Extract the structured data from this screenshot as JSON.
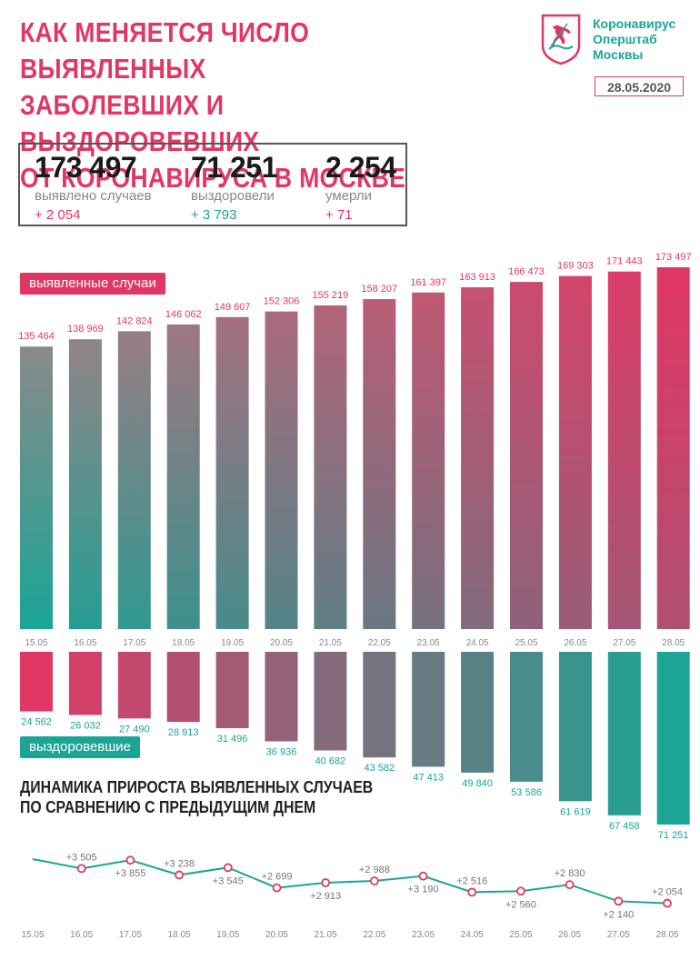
{
  "title_lines": [
    "КАК МЕНЯЕТСЯ ЧИСЛО ВЫЯВЛЕННЫХ",
    "ЗАБОЛЕВШИХ И ВЫЗДОРОВЕВШИХ",
    "ОТ КОРОНАВИРУСА В МОСКВЕ"
  ],
  "org_lines": [
    "Коронавирус",
    "Оперштаб",
    "Москвы"
  ],
  "date": "28.05.2020",
  "summary": {
    "cases": {
      "value": "173 497",
      "label": "выявлено случаев",
      "delta": "+ 2 054"
    },
    "recovered": {
      "value": "71 251",
      "label": "выздоровели",
      "delta": "+ 3 793"
    },
    "deaths": {
      "value": "2 254",
      "label": "умерли",
      "delta": "+ 71"
    }
  },
  "labels": {
    "cases": "выявленные случаи",
    "recovered": "выздоровевшие"
  },
  "subtitle_lines": [
    "ДИНАМИКА ПРИРОСТА ВЫЯВЛЕННЫХ СЛУЧАЕВ",
    "ПО СРАВНЕНИЮ С ПРЕДЫДУЩИМ ДНЕМ"
  ],
  "colors": {
    "accent": "#e13765",
    "teal": "#1aa596",
    "gray": "#8a8a8a"
  },
  "chart_data": [
    {
      "type": "bar",
      "categories": [
        "15.05",
        "16.05",
        "17.05",
        "18.05",
        "19.05",
        "20.05",
        "21.05",
        "22.05",
        "23.05",
        "24.05",
        "25.05",
        "26.05",
        "27.05",
        "28.05"
      ],
      "series": [
        {
          "name": "выявленные случаи",
          "values": [
            135464,
            138969,
            142824,
            146062,
            149607,
            152306,
            155219,
            158207,
            161397,
            163913,
            166473,
            169303,
            171443,
            173497
          ],
          "labels": [
            "135 464",
            "138 969",
            "142 824",
            "146 062",
            "149 607",
            "152 306",
            "155 219",
            "158 207",
            "161 397",
            "163 913",
            "166 473",
            "169 303",
            "171 443",
            "173 497"
          ]
        },
        {
          "name": "выздоровевшие",
          "values": [
            24562,
            26032,
            27490,
            28913,
            31496,
            36936,
            40682,
            43582,
            47413,
            49840,
            53586,
            61619,
            67458,
            71251
          ],
          "labels": [
            "24 562",
            "26 032",
            "27 490",
            "28 913",
            "31 496",
            "36 936",
            "40 682",
            "43 582",
            "47 413",
            "49 840",
            "53 586",
            "61 619",
            "67 458",
            "71 251"
          ]
        }
      ]
    },
    {
      "type": "line",
      "title": "ДИНАМИКА ПРИРОСТА ВЫЯВЛЕННЫХ СЛУЧАЕВ ПО СРАВНЕНИЮ С ПРЕДЫДУЩИМ ДНЕМ",
      "categories": [
        "15.05",
        "16.05",
        "17.05",
        "18.05",
        "19.05",
        "20.05",
        "21.05",
        "22.05",
        "23.05",
        "24.05",
        "25.05",
        "26.05",
        "27.05",
        "28.05"
      ],
      "values": [
        null,
        3505,
        3855,
        3238,
        3545,
        2699,
        2913,
        2988,
        3190,
        2516,
        2560,
        2830,
        2140,
        2054
      ],
      "labels": [
        "",
        "+3 505",
        "+3 855",
        "+3 238",
        "+3 545",
        "+2 699",
        "+2 913",
        "+2 988",
        "+3 190",
        "+2 516",
        "+2 560",
        "+2 830",
        "+2 140",
        "+2 054"
      ]
    }
  ]
}
